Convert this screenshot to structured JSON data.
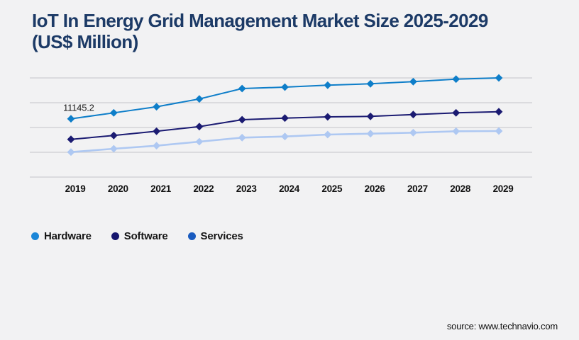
{
  "title": {
    "line1": "IoT In Energy Grid Management Market Size 2025-2029",
    "line2": "(US$ Million)"
  },
  "legend": {
    "items": [
      {
        "label": "Hardware",
        "color": "#1b86d8"
      },
      {
        "label": "Software",
        "color": "#16166e"
      },
      {
        "label": "Services",
        "color": "#1a5bbf"
      }
    ]
  },
  "source": {
    "label": "source: www.technavio.com"
  },
  "chart_data": {
    "type": "line",
    "title": "IoT In Energy Grid Management Market Size 2025-2029 (US$ Million)",
    "xlabel": "",
    "ylabel": "US$ Million",
    "categories": [
      "2019",
      "2020",
      "2021",
      "2022",
      "2023",
      "2024",
      "2025",
      "2026",
      "2027",
      "2028",
      "2029"
    ],
    "series": [
      {
        "name": "Hardware",
        "color": "#0e7ec9",
        "marker": "diamond",
        "values": [
          11145.2,
          12282.6,
          13447.3,
          14936.8,
          16927.5,
          17198.3,
          17563.9,
          17834.8,
          18241.1,
          18728.6,
          18958.8
        ]
      },
      {
        "name": "Software",
        "color": "#1b1b72",
        "marker": "diamond",
        "values": [
          7217.9,
          7949.2,
          8761.7,
          9655.4,
          10969.0,
          11280.5,
          11510.7,
          11605.5,
          11957.6,
          12282.6,
          12499.3
        ]
      },
      {
        "name": "Services",
        "color": "#aec8f2",
        "marker": "diamond",
        "values": [
          4780.3,
          5416.8,
          5999.1,
          6771.0,
          7542.9,
          7759.6,
          8125.2,
          8301.2,
          8490.8,
          8761.7,
          8802.0
        ]
      }
    ],
    "annotation": {
      "text": "11145.2",
      "series": "Hardware",
      "category": "2019"
    },
    "ylim": [
      0,
      18960
    ],
    "y_gridline_interval": 4740,
    "grid": "horizontal",
    "y_axis_labels_visible": false,
    "legend_position": "bottom-left",
    "values_note": "Only 11145.2 is labeled on the chart; all other values estimated from gridlines"
  }
}
